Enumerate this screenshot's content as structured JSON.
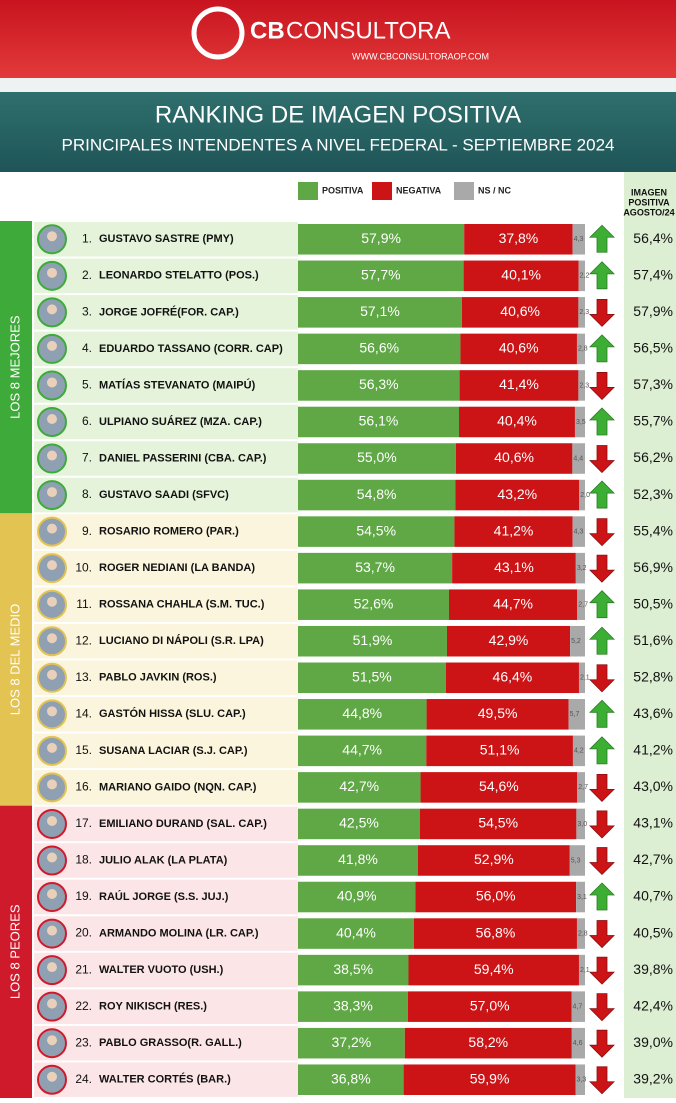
{
  "brand": {
    "name_bold": "CB",
    "name": "CONSULTORA",
    "url": "WWW.CBCONSULTORAOP.COM"
  },
  "chart_data": {
    "type": "bar",
    "orientation": "horizontal",
    "stacked": true,
    "title": "RANKING DE IMAGEN POSITIVA",
    "subtitle": "PRINCIPALES INTENDENTES A NIVEL FEDERAL - SEPTIEMBRE 2024",
    "xlim": [
      0,
      100
    ],
    "ranks": [
      "1.",
      "2.",
      "3.",
      "4.",
      "5.",
      "6.",
      "7.",
      "8.",
      "9.",
      "10.",
      "11.",
      "12.",
      "13.",
      "14.",
      "15.",
      "16.",
      "17.",
      "18.",
      "19.",
      "20.",
      "21.",
      "22.",
      "23.",
      "24."
    ],
    "categories": [
      "GUSTAVO SASTRE (PMY)",
      "LEONARDO STELATTO (POS.)",
      "JORGE JOFRÉ(FOR. CAP.)",
      "EDUARDO TASSANO (CORR. CAP)",
      "MATÍAS STEVANATO (MAIPÚ)",
      "ULPIANO SUÁREZ (MZA. CAP.)",
      "DANIEL PASSERINI (CBA. CAP.)",
      "GUSTAVO SAADI (SFVC)",
      "ROSARIO ROMERO (PAR.)",
      "ROGER NEDIANI (LA BANDA)",
      "ROSSANA CHAHLA (S.M. TUC.)",
      "LUCIANO DI NÁPOLI (S.R. LPA)",
      "PABLO JAVKIN (ROS.)",
      "GASTÓN HISSA (SLU. CAP.)",
      "SUSANA LACIAR (S.J. CAP.)",
      "MARIANO GAIDO (NQN. CAP.)",
      "EMILIANO DURAND (SAL. CAP.)",
      "JULIO ALAK (LA PLATA)",
      "RAÚL JORGE (S.S. JUJ.)",
      "ARMANDO MOLINA (LR. CAP.)",
      "WALTER VUOTO (USH.)",
      "ROY NIKISCH (RES.)",
      "PABLO GRASSO(R. GALL.)",
      "WALTER CORTÉS (BAR.)"
    ],
    "groups": [
      {
        "label": "LOS 8 MEJORES",
        "color": "#3eaa3a",
        "tint": "#e4f3da"
      },
      {
        "label": "LOS 8 DEL MEDIO",
        "color": "#e3c352",
        "tint": "#fbf5dd"
      },
      {
        "label": "LOS 8 PEORES",
        "color": "#cf1a2b",
        "tint": "#fbe5e7"
      }
    ],
    "series": [
      {
        "name": "POSITIVA",
        "color": "#5fa845",
        "values": [
          57.9,
          57.7,
          57.1,
          56.6,
          56.3,
          56.1,
          55.0,
          54.8,
          54.5,
          53.7,
          52.6,
          51.9,
          51.5,
          44.8,
          44.7,
          42.7,
          42.5,
          41.8,
          40.9,
          40.4,
          38.5,
          38.3,
          37.2,
          36.8
        ],
        "value_labels": [
          "57,9%",
          "57,7%",
          "57,1%",
          "56,6%",
          "56,3%",
          "56,1%",
          "55,0%",
          "54,8%",
          "54,5%",
          "53,7%",
          "52,6%",
          "51,9%",
          "51,5%",
          "44,8%",
          "44,7%",
          "42,7%",
          "42,5%",
          "41,8%",
          "40,9%",
          "40,4%",
          "38,5%",
          "38,3%",
          "37,2%",
          "36,8%"
        ]
      },
      {
        "name": "NEGATIVA",
        "color": "#cc1417",
        "values": [
          37.8,
          40.1,
          40.6,
          40.6,
          41.4,
          40.4,
          40.6,
          43.2,
          41.2,
          43.1,
          44.7,
          42.9,
          46.4,
          49.5,
          51.1,
          54.6,
          54.5,
          52.9,
          56.0,
          56.8,
          59.4,
          57.0,
          58.2,
          59.9
        ],
        "value_labels": [
          "37,8%",
          "40,1%",
          "40,6%",
          "40,6%",
          "41,4%",
          "40,4%",
          "40,6%",
          "43,2%",
          "41,2%",
          "43,1%",
          "44,7%",
          "42,9%",
          "46,4%",
          "49,5%",
          "51,1%",
          "54,6%",
          "54,5%",
          "52,9%",
          "56,0%",
          "56,8%",
          "59,4%",
          "57,0%",
          "58,2%",
          "59,9%"
        ]
      },
      {
        "name": "NS / NC",
        "color": "#a9a9a9",
        "values": [
          4.3,
          2.2,
          2.3,
          2.8,
          2.3,
          3.5,
          4.4,
          2.0,
          4.3,
          3.2,
          2.7,
          5.2,
          2.1,
          5.7,
          4.2,
          2.7,
          3.0,
          5.3,
          3.1,
          2.8,
          2.1,
          4.7,
          4.6,
          3.3
        ],
        "value_labels": [
          "4,3",
          "2,2",
          "2,3",
          "2,8",
          "2,3",
          "3,5",
          "4,4",
          "2,0",
          "4,3",
          "3,2",
          "2,7",
          "5,2",
          "2,1",
          "5,7",
          "4,2",
          "2,7",
          "3,0",
          "5,3",
          "3,1",
          "2,8",
          "2,1",
          "4,7",
          "4,6",
          "3,3"
        ]
      }
    ],
    "trend": [
      "up",
      "up",
      "down",
      "up",
      "down",
      "up",
      "down",
      "up",
      "down",
      "down",
      "up",
      "up",
      "down",
      "up",
      "up",
      "down",
      "down",
      "down",
      "up",
      "down",
      "down",
      "down",
      "down",
      "down"
    ],
    "previous": {
      "label_lines": [
        "IMAGEN",
        "POSITIVA",
        "AGOSTO/24"
      ],
      "values": [
        56.4,
        57.4,
        57.9,
        56.5,
        57.3,
        55.7,
        56.2,
        52.3,
        55.4,
        56.9,
        50.5,
        51.6,
        52.8,
        43.6,
        41.2,
        43.0,
        43.1,
        42.7,
        40.7,
        40.5,
        39.8,
        42.4,
        39.0,
        39.2
      ],
      "value_labels": [
        "56,4%",
        "57,4%",
        "57,9%",
        "56,5%",
        "57,3%",
        "55,7%",
        "56,2%",
        "52,3%",
        "55,4%",
        "56,9%",
        "50,5%",
        "51,6%",
        "52,8%",
        "43,6%",
        "41,2%",
        "43,0%",
        "43,1%",
        "42,7%",
        "40,7%",
        "40,5%",
        "39,8%",
        "42,4%",
        "39,0%",
        "39,2%"
      ]
    }
  }
}
